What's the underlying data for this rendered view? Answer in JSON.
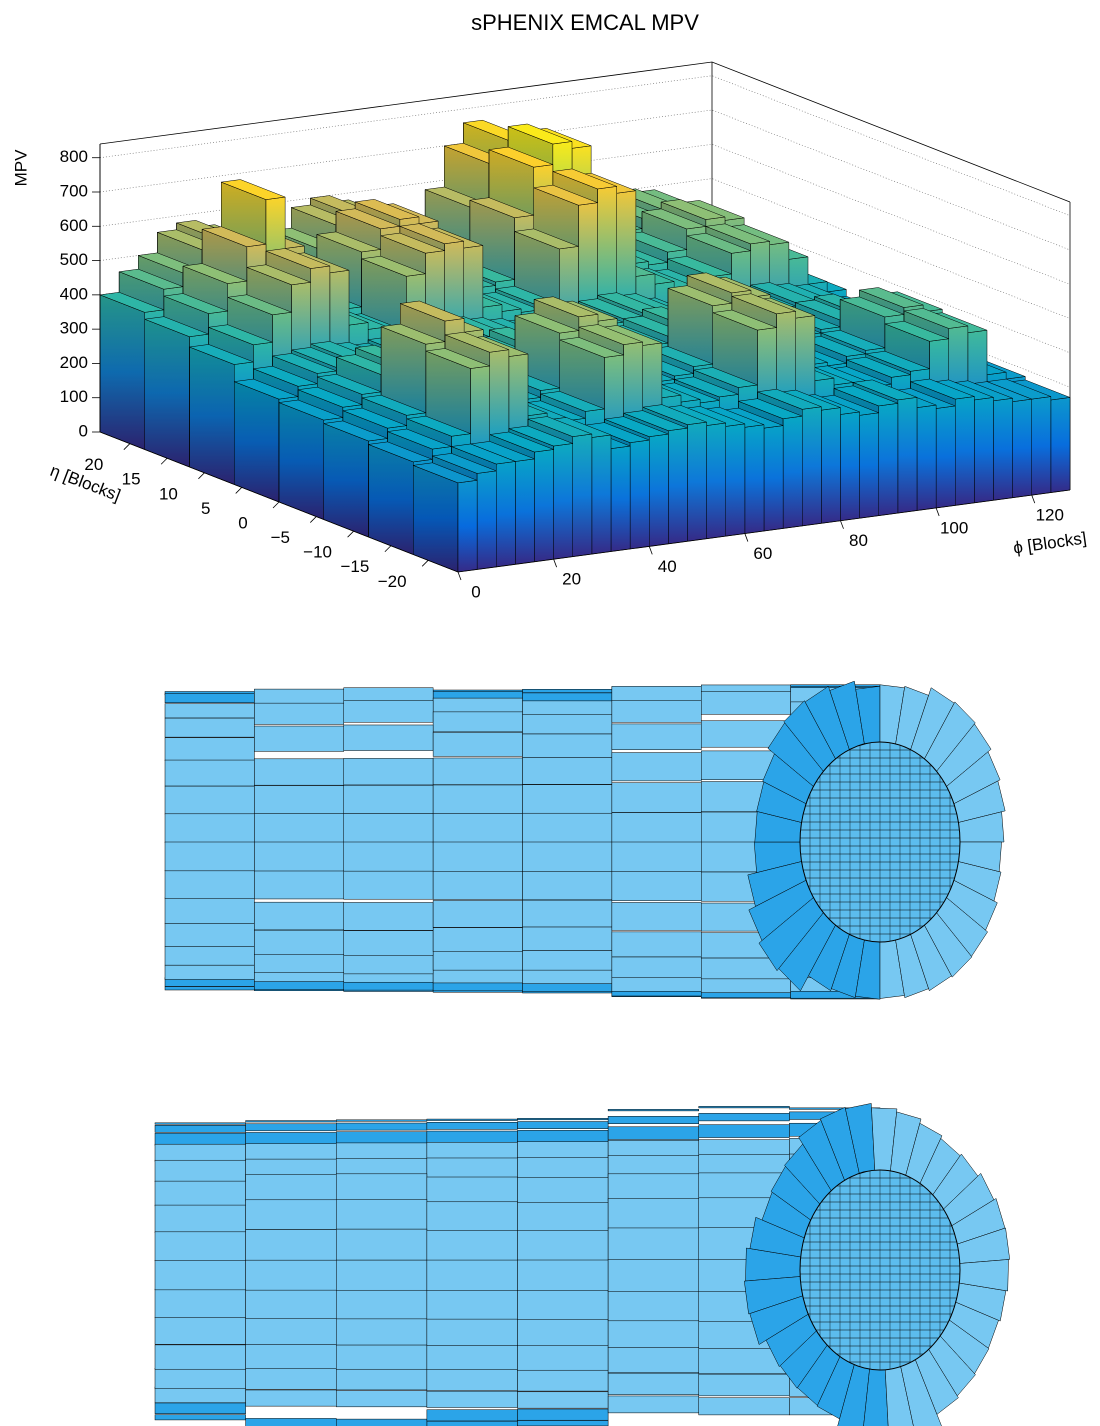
{
  "chart_data": {
    "type": "lego",
    "title": "sPHENIX EMCAL MPV",
    "x_label": "ϕ [Blocks]",
    "y_label": "η [Blocks]",
    "z_label": "MPV",
    "xlim": [
      0,
      128
    ],
    "ylim": [
      -24,
      24
    ],
    "zlim": [
      0,
      840
    ],
    "xticks": [
      0,
      20,
      40,
      60,
      80,
      100,
      120
    ],
    "yticks": [
      20,
      15,
      10,
      5,
      0,
      {
        "value": -5,
        "label": "−5"
      },
      {
        "value": -10,
        "label": "−10"
      },
      {
        "value": -15,
        "label": "−15"
      },
      {
        "value": -20,
        "label": "−20"
      }
    ],
    "zticks": [
      0,
      100,
      200,
      300,
      400,
      500,
      600,
      700,
      800
    ],
    "palette": "bird",
    "grid": true,
    "values": [
      [
        260,
        280,
        300,
        300,
        320,
        330,
        350,
        340,
        300,
        310,
        320,
        330,
        340,
        330,
        320,
        310,
        300,
        320,
        340,
        330,
        310,
        300,
        320,
        330,
        300,
        290,
        310,
        300,
        290,
        280,
        280,
        270
      ],
      [
        270,
        300,
        330,
        520,
        560,
        540,
        360,
        340,
        330,
        350,
        500,
        530,
        520,
        360,
        340,
        330,
        340,
        360,
        520,
        560,
        540,
        350,
        330,
        320,
        310,
        330,
        340,
        420,
        450,
        430,
        300,
        280
      ],
      [
        280,
        310,
        340,
        540,
        600,
        560,
        370,
        350,
        340,
        360,
        520,
        560,
        540,
        370,
        350,
        340,
        350,
        370,
        540,
        570,
        550,
        360,
        340,
        330,
        320,
        340,
        350,
        440,
        460,
        440,
        310,
        290
      ],
      [
        290,
        320,
        350,
        400,
        420,
        410,
        380,
        360,
        350,
        370,
        400,
        420,
        410,
        380,
        360,
        350,
        360,
        380,
        400,
        420,
        410,
        370,
        350,
        340,
        330,
        350,
        360,
        380,
        390,
        370,
        320,
        300
      ],
      [
        300,
        330,
        360,
        370,
        380,
        370,
        360,
        370,
        360,
        380,
        390,
        400,
        390,
        380,
        370,
        360,
        370,
        390,
        400,
        410,
        400,
        380,
        360,
        350,
        340,
        360,
        370,
        380,
        370,
        360,
        330,
        310
      ],
      [
        350,
        400,
        480,
        560,
        600,
        580,
        420,
        400,
        380,
        540,
        600,
        620,
        600,
        420,
        400,
        390,
        400,
        560,
        680,
        720,
        700,
        450,
        420,
        400,
        390,
        420,
        480,
        500,
        490,
        440,
        360,
        330
      ],
      [
        380,
        440,
        520,
        620,
        750,
        600,
        440,
        420,
        400,
        560,
        620,
        640,
        620,
        440,
        420,
        410,
        420,
        600,
        740,
        800,
        780,
        480,
        440,
        420,
        410,
        440,
        500,
        520,
        510,
        460,
        380,
        340
      ],
      [
        400,
        460,
        500,
        560,
        580,
        560,
        450,
        430,
        410,
        520,
        580,
        600,
        580,
        450,
        430,
        420,
        430,
        580,
        700,
        760,
        720,
        480,
        450,
        430,
        420,
        450,
        480,
        500,
        490,
        450,
        390,
        360
      ]
    ]
  }
}
